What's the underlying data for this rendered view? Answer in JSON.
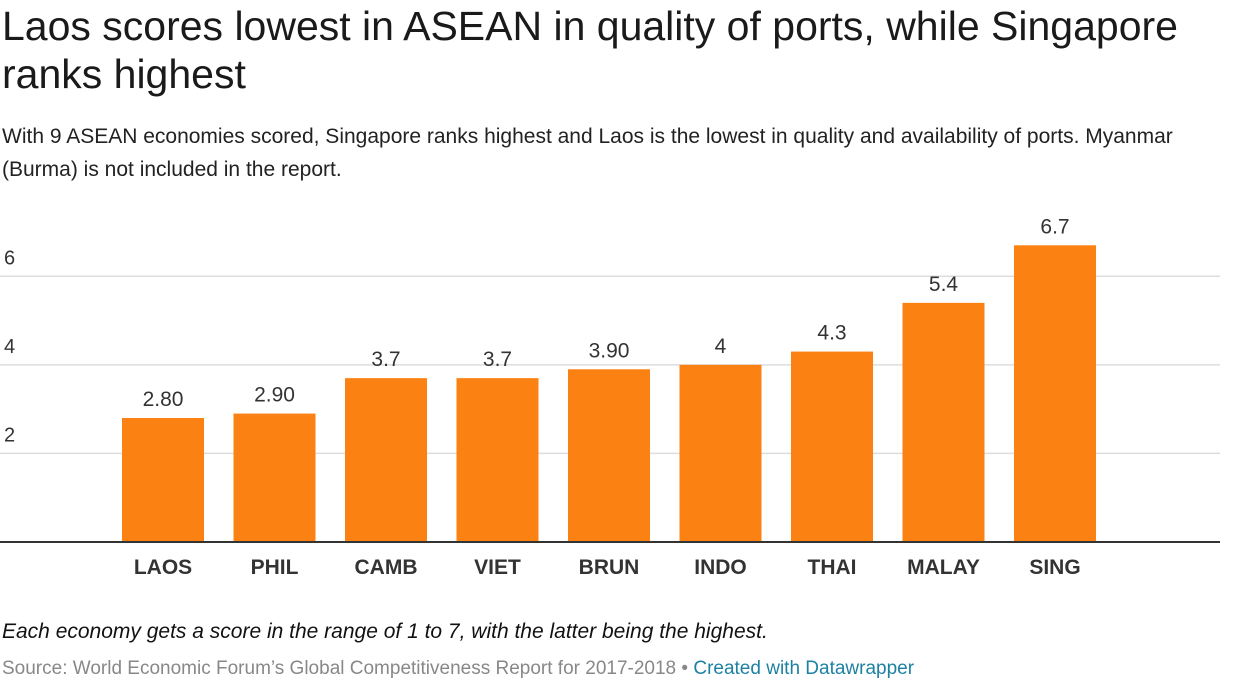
{
  "header": {
    "title": "Laos scores lowest in ASEAN in quality of ports, while Singapore ranks highest",
    "subtitle": "With 9 ASEAN economies scored, Singapore ranks highest and Laos is the lowest in quality and availability of ports. Myanmar (Burma) is not included in the report."
  },
  "footer": {
    "note": "Each economy gets a score in the range of 1 to 7, with the latter being the highest.",
    "source": "Source: World Economic Forum’s Global Competitiveness Report for 2017-2018",
    "separator": "•",
    "credit": "Created with Datawrapper"
  },
  "chart_data": {
    "type": "bar",
    "categories": [
      "LAOS",
      "PHIL",
      "CAMB",
      "VIET",
      "BRUN",
      "INDO",
      "THAI",
      "MALAY",
      "SING"
    ],
    "values": [
      2.8,
      2.9,
      3.7,
      3.7,
      3.9,
      4,
      4.3,
      5.4,
      6.7
    ],
    "value_labels": [
      "2.80",
      "2.90",
      "3.7",
      "3.7",
      "3.90",
      "4",
      "4.3",
      "5.4",
      "6.7"
    ],
    "yticks": [
      2,
      4,
      6
    ],
    "ylim": [
      0,
      7
    ],
    "grid": true,
    "bar_color": "#fc8113",
    "gridline_color": "#dddddd",
    "baseline_color": "#333333"
  }
}
